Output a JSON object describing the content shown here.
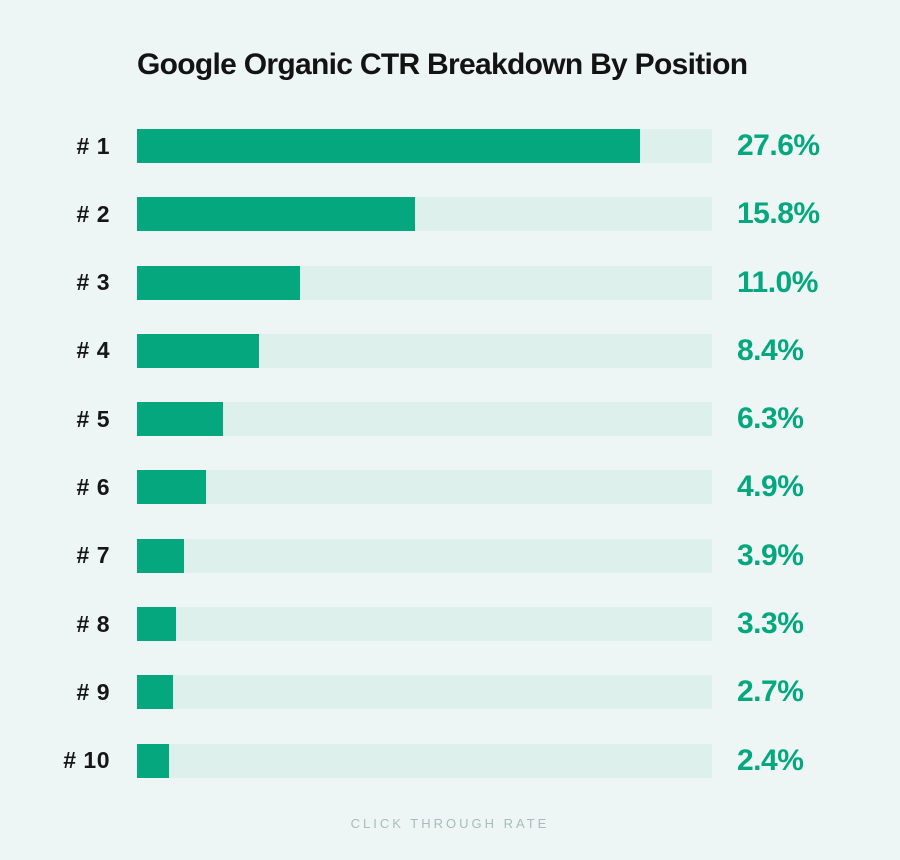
{
  "chart_data": {
    "type": "bar",
    "orientation": "horizontal",
    "title": "Google Organic CTR Breakdown By Position",
    "xlabel": "CLICK THROUGH RATE",
    "ylabel": "",
    "unit": "%",
    "legend": false,
    "grid": false,
    "categories": [
      "# 1",
      "# 2",
      "# 3",
      "# 4",
      "# 5",
      "# 6",
      "# 7",
      "# 8",
      "# 9",
      "# 10"
    ],
    "values": [
      27.6,
      15.8,
      11.0,
      8.4,
      6.3,
      4.9,
      3.9,
      3.3,
      2.7,
      2.4
    ],
    "value_labels": [
      "27.6%",
      "15.8%",
      "11.0%",
      "8.4%",
      "6.3%",
      "4.9%",
      "3.9%",
      "3.3%",
      "2.7%",
      "2.4%"
    ],
    "bar_widths_pct_of_track": [
      87.5,
      48.3,
      28.3,
      21.2,
      15.0,
      12.0,
      8.2,
      6.8,
      6.3,
      5.6
    ],
    "colors": {
      "background": "#edf6f4",
      "track_color": "#ddf0ec",
      "bar_color": "#04a77e",
      "value_color": "#04a77e",
      "title_color": "#131313",
      "label_color": "#161616",
      "footer_color": "#a8bcb9"
    }
  }
}
